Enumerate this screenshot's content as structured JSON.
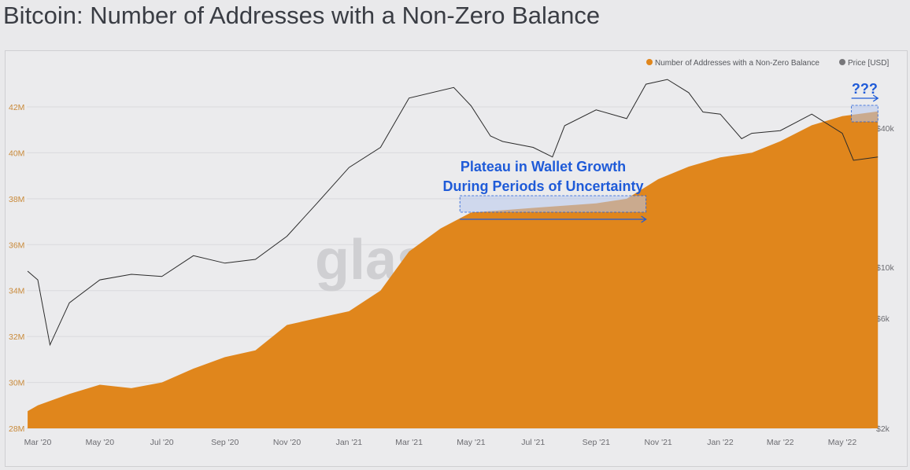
{
  "title": "Bitcoin: Number of Addresses with a Non-Zero Balance",
  "chart_data": {
    "type": "area",
    "title": "Bitcoin: Number of Addresses with a Non-Zero Balance",
    "legend": {
      "placement": "top-right",
      "entries": [
        "Number of Addresses with a Non-Zero Balance",
        "Price [USD]"
      ]
    },
    "colors": {
      "addresses": "#e0861c",
      "price": "#2b2b2b",
      "annotation": "#1f5bd8",
      "highlight": "#b8c8ec"
    },
    "x_ticks": [
      "Mar '20",
      "May '20",
      "Jul '20",
      "Sep '20",
      "Nov '20",
      "Jan '21",
      "Mar '21",
      "May '21",
      "Jul '21",
      "Sep '21",
      "Nov '21",
      "Jan '22",
      "Mar '22",
      "May '22"
    ],
    "x_tick_dates": [
      "2020-03-01",
      "2020-05-01",
      "2020-07-01",
      "2020-09-01",
      "2020-11-01",
      "2021-01-01",
      "2021-03-01",
      "2021-05-01",
      "2021-07-01",
      "2021-09-01",
      "2021-11-01",
      "2022-01-01",
      "2022-03-01",
      "2022-05-01"
    ],
    "left_axis": {
      "ticks": [
        "28M",
        "30M",
        "32M",
        "34M",
        "36M",
        "38M",
        "40M",
        "42M"
      ],
      "values": [
        28,
        30,
        32,
        34,
        36,
        38,
        40,
        42
      ],
      "range": [
        28,
        42.3
      ],
      "unit": "M"
    },
    "right_axis": {
      "scale": "log",
      "ticks": [
        "$2k",
        "$6k",
        "$10k",
        "$40k"
      ],
      "values": [
        2000,
        6000,
        10000,
        40000
      ],
      "range": [
        2000,
        80000
      ]
    },
    "grid": true,
    "series": [
      {
        "name": "Number of Addresses with a Non-Zero Balance",
        "axis": "left",
        "kind": "area",
        "points": [
          [
            "2020-02-20",
            28.75
          ],
          [
            "2020-03-01",
            29.0
          ],
          [
            "2020-04-01",
            29.5
          ],
          [
            "2020-05-01",
            29.9
          ],
          [
            "2020-06-01",
            29.75
          ],
          [
            "2020-07-01",
            30.0
          ],
          [
            "2020-08-01",
            30.6
          ],
          [
            "2020-09-01",
            31.1
          ],
          [
            "2020-10-01",
            31.4
          ],
          [
            "2020-11-01",
            32.5
          ],
          [
            "2020-12-01",
            32.8
          ],
          [
            "2021-01-01",
            33.1
          ],
          [
            "2021-02-01",
            34.0
          ],
          [
            "2021-03-01",
            35.7
          ],
          [
            "2021-04-01",
            36.7
          ],
          [
            "2021-05-01",
            37.4
          ],
          [
            "2021-06-01",
            37.5
          ],
          [
            "2021-07-01",
            37.6
          ],
          [
            "2021-08-01",
            37.7
          ],
          [
            "2021-09-01",
            37.8
          ],
          [
            "2021-10-01",
            38.0
          ],
          [
            "2021-11-01",
            38.85
          ],
          [
            "2021-12-01",
            39.4
          ],
          [
            "2022-01-01",
            39.8
          ],
          [
            "2022-02-01",
            40.0
          ],
          [
            "2022-03-01",
            40.5
          ],
          [
            "2022-04-01",
            41.2
          ],
          [
            "2022-05-01",
            41.6
          ],
          [
            "2022-06-05",
            41.8
          ]
        ]
      },
      {
        "name": "Price [USD]",
        "axis": "right",
        "kind": "line",
        "points": [
          [
            "2020-02-20",
            9600
          ],
          [
            "2020-03-01",
            8800
          ],
          [
            "2020-03-13",
            4600
          ],
          [
            "2020-04-01",
            7000
          ],
          [
            "2020-05-01",
            8800
          ],
          [
            "2020-06-01",
            9300
          ],
          [
            "2020-07-01",
            9100
          ],
          [
            "2020-08-01",
            11200
          ],
          [
            "2020-09-01",
            10400
          ],
          [
            "2020-10-01",
            10800
          ],
          [
            "2020-11-01",
            13600
          ],
          [
            "2020-12-01",
            19000
          ],
          [
            "2021-01-01",
            27000
          ],
          [
            "2021-02-01",
            33000
          ],
          [
            "2021-03-01",
            54000
          ],
          [
            "2021-04-14",
            60000
          ],
          [
            "2021-05-01",
            50000
          ],
          [
            "2021-05-20",
            37000
          ],
          [
            "2021-06-01",
            35000
          ],
          [
            "2021-07-01",
            33000
          ],
          [
            "2021-07-20",
            30000
          ],
          [
            "2021-08-01",
            41000
          ],
          [
            "2021-09-01",
            48000
          ],
          [
            "2021-10-01",
            44000
          ],
          [
            "2021-10-20",
            62000
          ],
          [
            "2021-11-10",
            65000
          ],
          [
            "2021-12-01",
            57000
          ],
          [
            "2021-12-15",
            47000
          ],
          [
            "2022-01-01",
            46000
          ],
          [
            "2022-01-22",
            36000
          ],
          [
            "2022-02-01",
            38000
          ],
          [
            "2022-03-01",
            39000
          ],
          [
            "2022-04-01",
            46000
          ],
          [
            "2022-05-01",
            38000
          ],
          [
            "2022-05-12",
            29000
          ],
          [
            "2022-06-05",
            30000
          ]
        ]
      }
    ],
    "annotations": [
      {
        "text_lines": [
          "Plateau in Wallet Growth",
          "During Periods of Uncertainty"
        ],
        "from": "2021-04-20",
        "to": "2021-10-20"
      },
      {
        "text": "???",
        "from": "2022-05-10",
        "to": "2022-06-05"
      }
    ],
    "watermark": "glassnode"
  }
}
